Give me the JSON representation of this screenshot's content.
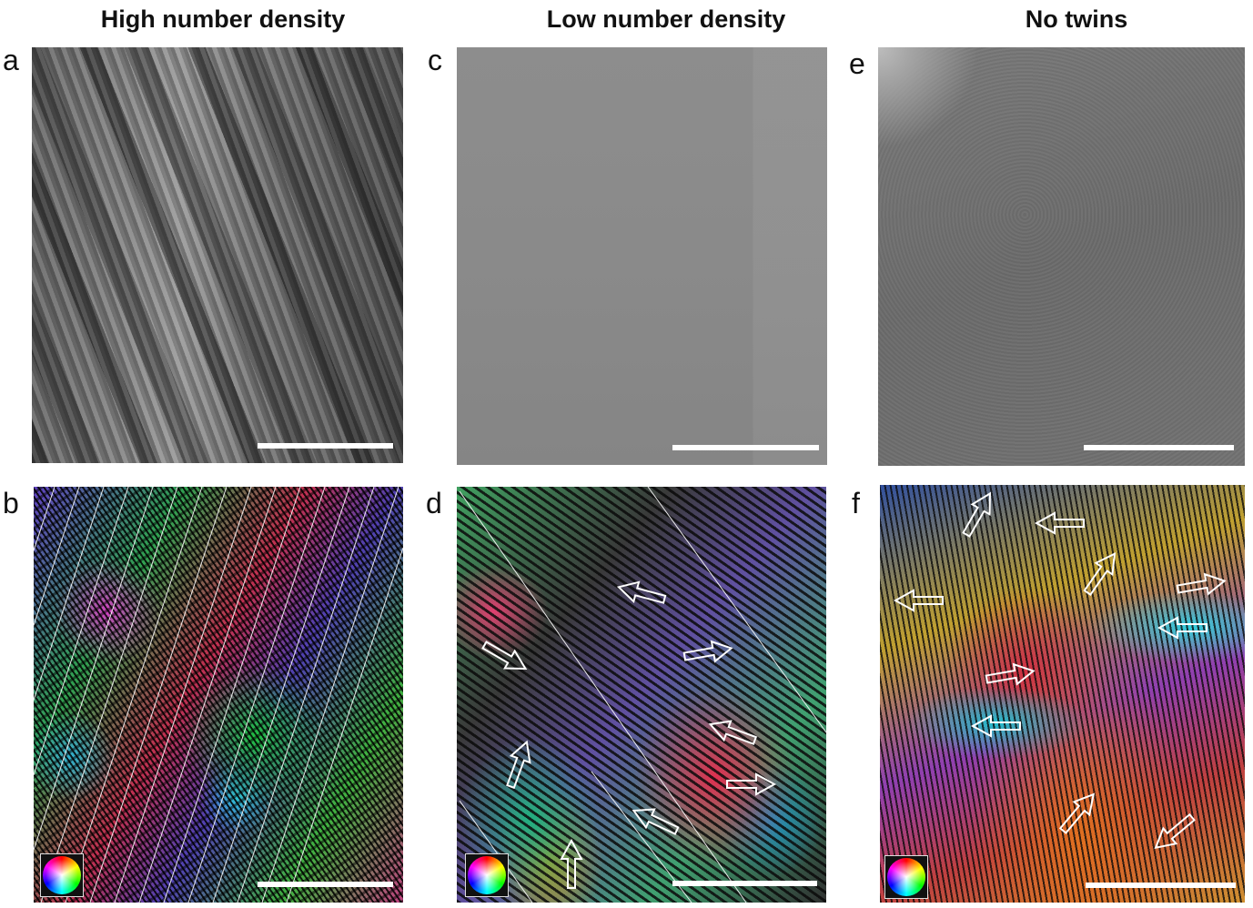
{
  "columns": [
    {
      "title": "High number density",
      "top_label": "a",
      "bottom_label": "b"
    },
    {
      "title": "Low number density",
      "top_label": "c",
      "bottom_label": "d"
    },
    {
      "title": "No twins",
      "top_label": "e",
      "bottom_label": "f"
    }
  ],
  "colors": {
    "scale_bar": "#ffffff",
    "arrow_outline": "#ffffff",
    "twin_boundary_line": "#ffffff"
  },
  "icons": {
    "color_wheel": "hsv-color-wheel-legend"
  }
}
